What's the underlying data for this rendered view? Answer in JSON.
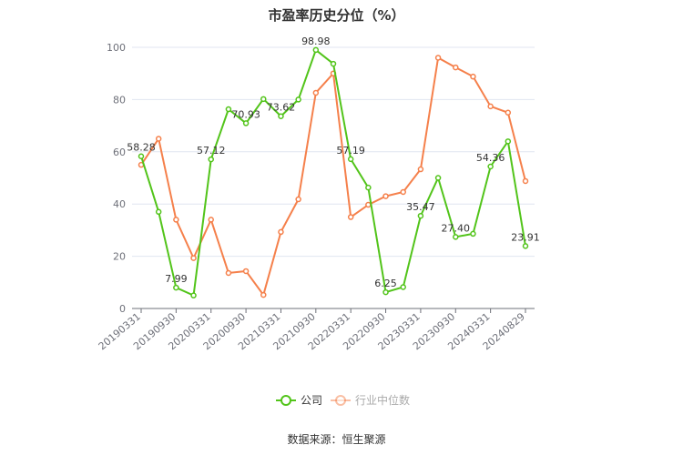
{
  "chart_data": {
    "type": "line",
    "title": "市盈率历史分位（%）",
    "x": [
      "20190331",
      "20190630",
      "20190930",
      "20191231",
      "20200331",
      "20200630",
      "20200930",
      "20201231",
      "20210331",
      "20210630",
      "20210930",
      "20211231",
      "20220331",
      "20220630",
      "20220930",
      "20221231",
      "20230331",
      "20230630",
      "20230930",
      "20231231",
      "20240331",
      "20240630",
      "20240829"
    ],
    "xtick_labels": [
      "20190331",
      "20190930",
      "20200331",
      "20200930",
      "20210331",
      "20210930",
      "20220331",
      "20220930",
      "20230331",
      "20230930",
      "20240331",
      "20240829"
    ],
    "ylim": [
      0,
      100
    ],
    "yticks": [
      0,
      20,
      40,
      60,
      80,
      100
    ],
    "grid": true,
    "legend_position": "bottom",
    "series": [
      {
        "name": "公司",
        "color": "#52c41a",
        "values": [
          58.28,
          37,
          7.99,
          5,
          57.12,
          76.3,
          70.93,
          80.2,
          73.62,
          80,
          98.98,
          93.7,
          57.19,
          46.3,
          6.25,
          8.2,
          35.47,
          50,
          27.4,
          28.6,
          54.36,
          64,
          23.91
        ],
        "labels": {
          "0": "58.28",
          "2": "7.99",
          "4": "57.12",
          "6": "70.93",
          "8": "73.62",
          "10": "98.98",
          "12": "57.19",
          "14": "6.25",
          "16": "35.47",
          "18": "27.40",
          "20": "54.36",
          "22": "23.91"
        }
      },
      {
        "name": "行业中位数",
        "color": "#f5804b",
        "values": [
          55,
          65,
          34,
          19.3,
          34,
          13.6,
          14.3,
          5.2,
          29.3,
          41.8,
          82.6,
          90,
          35,
          39.7,
          43,
          44.6,
          53.3,
          96,
          92.3,
          88.8,
          77.4,
          75,
          48.8
        ]
      }
    ]
  },
  "source": "数据来源：恒生聚源"
}
